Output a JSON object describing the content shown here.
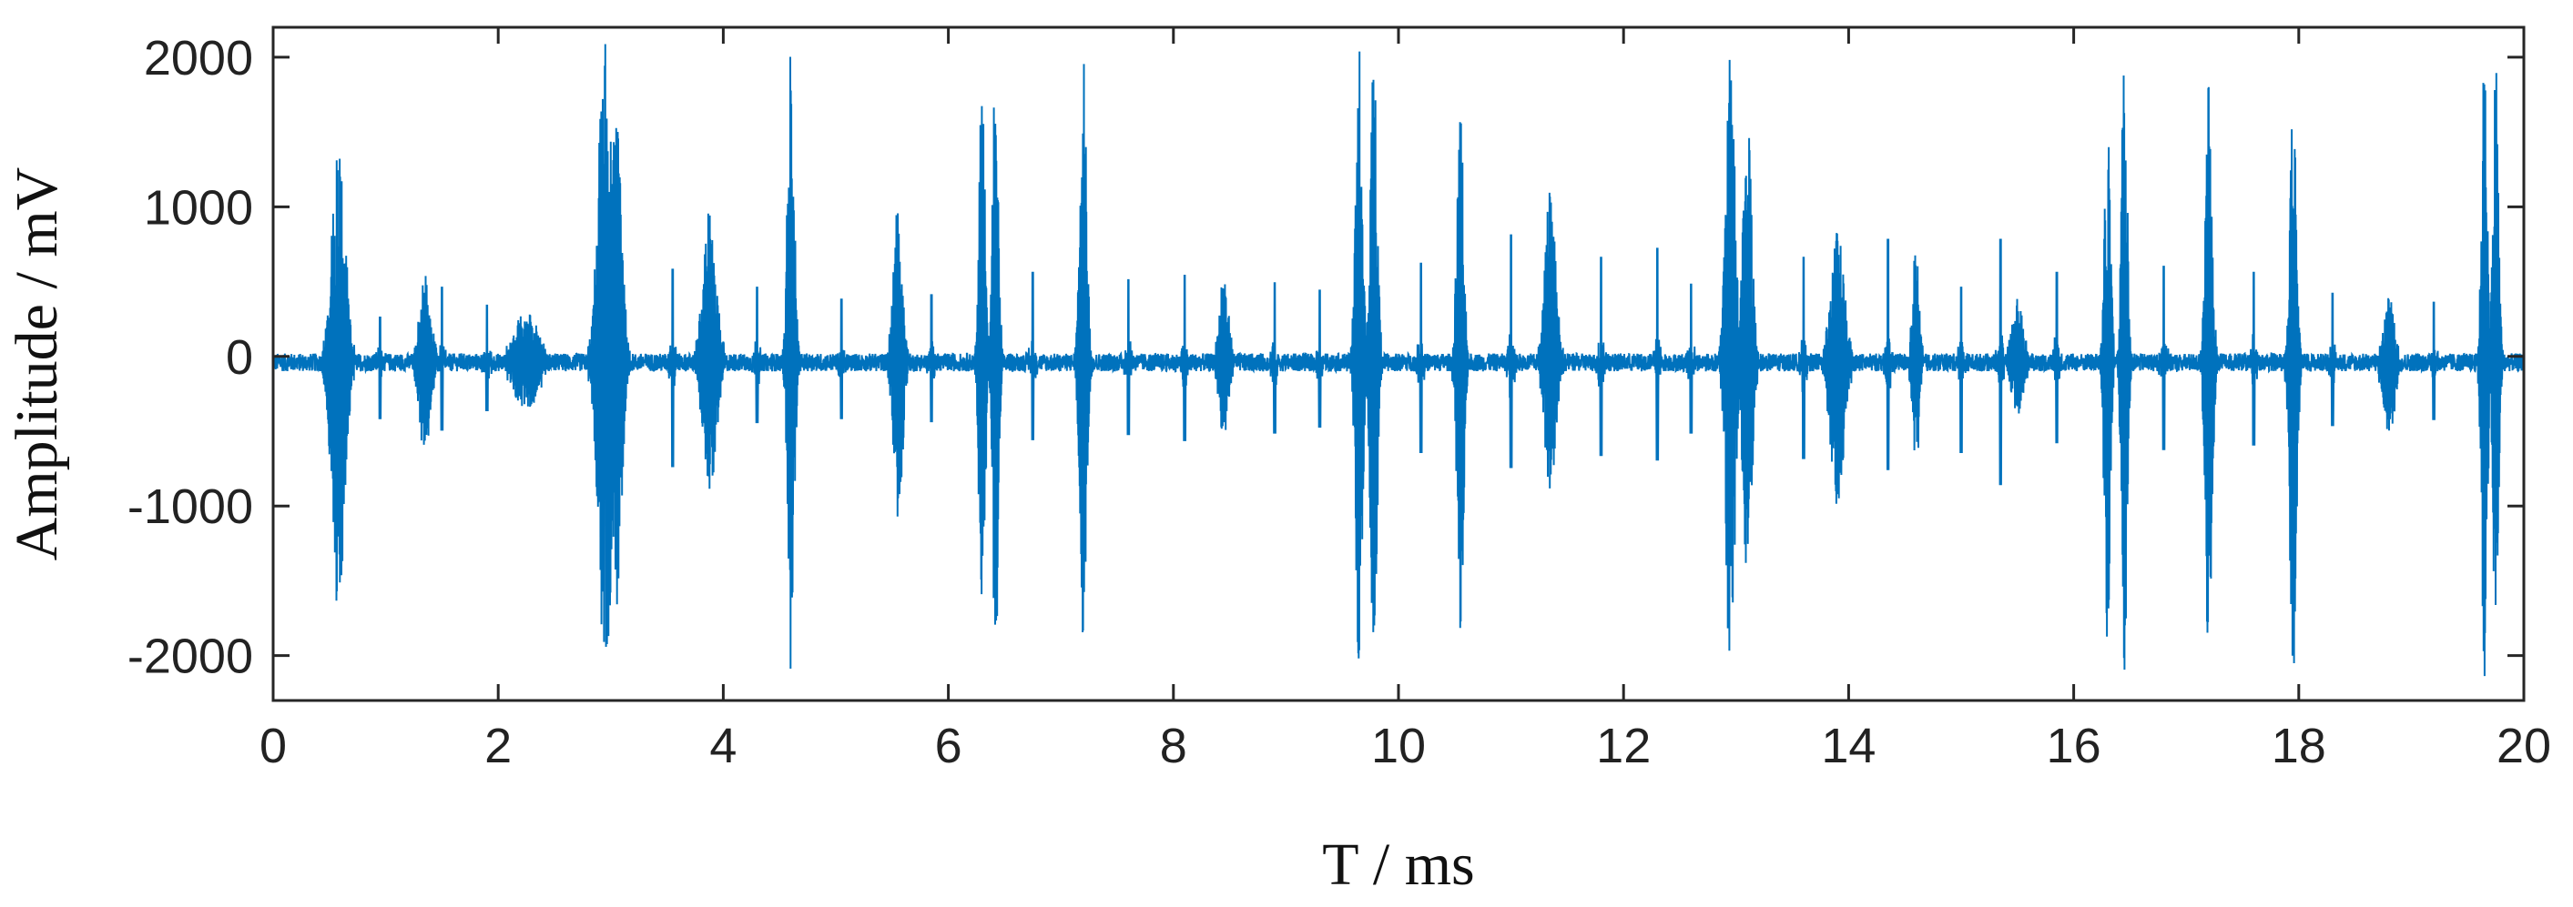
{
  "chart_data": {
    "type": "line",
    "title": "",
    "xlabel": "T / ms",
    "ylabel": "Amplitude / mV",
    "xlim": [
      0,
      20
    ],
    "ylim": [
      -2300,
      2200
    ],
    "x_ticks": [
      0,
      2,
      4,
      6,
      8,
      10,
      12,
      14,
      16,
      18,
      20
    ],
    "y_ticks": [
      -2000,
      -1000,
      0,
      1000,
      2000
    ],
    "x_tick_labels": [
      "0",
      "2",
      "4",
      "6",
      "8",
      "10",
      "12",
      "14",
      "16",
      "18",
      "20"
    ],
    "y_tick_labels": [
      "-2000",
      "-1000",
      "0",
      "1000",
      "2000"
    ],
    "grid": false,
    "legend": "none",
    "series_color": "#0072BD",
    "baseline_offset": -40,
    "noise_amplitude": 60,
    "bursts": [
      {
        "t": 0.58,
        "pos": 1480,
        "neg": -1670,
        "width": 0.12
      },
      {
        "t": 1.35,
        "pos": 560,
        "neg": -620,
        "width": 0.1
      },
      {
        "t": 2.25,
        "pos": 330,
        "neg": -320,
        "width": 0.2
      },
      {
        "t": 2.95,
        "pos": 2200,
        "neg": -2200,
        "width": 0.12
      },
      {
        "t": 3.05,
        "pos": 1650,
        "neg": -1600,
        "width": 0.1
      },
      {
        "t": 3.88,
        "pos": 1020,
        "neg": -850,
        "width": 0.12
      },
      {
        "t": 4.6,
        "pos": 2070,
        "neg": -2080,
        "width": 0.06
      },
      {
        "t": 5.55,
        "pos": 1050,
        "neg": -1160,
        "width": 0.08
      },
      {
        "t": 6.3,
        "pos": 2100,
        "neg": -2090,
        "width": 0.05
      },
      {
        "t": 6.42,
        "pos": 2100,
        "neg": -2080,
        "width": 0.05
      },
      {
        "t": 7.2,
        "pos": 2050,
        "neg": -2060,
        "width": 0.06
      },
      {
        "t": 8.45,
        "pos": 560,
        "neg": -500,
        "width": 0.08
      },
      {
        "t": 9.65,
        "pos": 2220,
        "neg": -2210,
        "width": 0.06
      },
      {
        "t": 9.78,
        "pos": 2100,
        "neg": -2060,
        "width": 0.06
      },
      {
        "t": 10.55,
        "pos": 1700,
        "neg": -2020,
        "width": 0.06
      },
      {
        "t": 11.35,
        "pos": 1160,
        "neg": -900,
        "width": 0.1
      },
      {
        "t": 12.95,
        "pos": 2240,
        "neg": -2200,
        "width": 0.08
      },
      {
        "t": 13.1,
        "pos": 1650,
        "neg": -1500,
        "width": 0.08
      },
      {
        "t": 13.9,
        "pos": 900,
        "neg": -960,
        "width": 0.12
      },
      {
        "t": 14.6,
        "pos": 800,
        "neg": -700,
        "width": 0.06
      },
      {
        "t": 15.5,
        "pos": 380,
        "neg": -350,
        "width": 0.1
      },
      {
        "t": 16.3,
        "pos": 2100,
        "neg": -2290,
        "width": 0.05
      },
      {
        "t": 16.45,
        "pos": 2100,
        "neg": -2080,
        "width": 0.05
      },
      {
        "t": 17.2,
        "pos": 1830,
        "neg": -2070,
        "width": 0.06
      },
      {
        "t": 17.95,
        "pos": 1780,
        "neg": -2140,
        "width": 0.06
      },
      {
        "t": 18.8,
        "pos": 440,
        "neg": -500,
        "width": 0.1
      },
      {
        "t": 19.65,
        "pos": 2070,
        "neg": -2230,
        "width": 0.05
      },
      {
        "t": 19.75,
        "pos": 2060,
        "neg": -2060,
        "width": 0.05
      }
    ],
    "spikes": [
      {
        "t": 0.95,
        "pos": 300,
        "neg": -380
      },
      {
        "t": 1.5,
        "pos": 500,
        "neg": -450
      },
      {
        "t": 1.9,
        "pos": 380,
        "neg": -320
      },
      {
        "t": 3.55,
        "pos": 620,
        "neg": -700
      },
      {
        "t": 4.3,
        "pos": 500,
        "neg": -400
      },
      {
        "t": 5.05,
        "pos": 420,
        "neg": -380
      },
      {
        "t": 5.85,
        "pos": 450,
        "neg": -400
      },
      {
        "t": 6.75,
        "pos": 600,
        "neg": -520
      },
      {
        "t": 7.6,
        "pos": 550,
        "neg": -480
      },
      {
        "t": 8.1,
        "pos": 580,
        "neg": -520
      },
      {
        "t": 8.9,
        "pos": 530,
        "neg": -470
      },
      {
        "t": 9.3,
        "pos": 480,
        "neg": -430
      },
      {
        "t": 10.2,
        "pos": 660,
        "neg": -600
      },
      {
        "t": 11.0,
        "pos": 850,
        "neg": -700
      },
      {
        "t": 11.8,
        "pos": 700,
        "neg": -620
      },
      {
        "t": 12.3,
        "pos": 760,
        "neg": -650
      },
      {
        "t": 12.6,
        "pos": 520,
        "neg": -470
      },
      {
        "t": 13.6,
        "pos": 700,
        "neg": -640
      },
      {
        "t": 14.35,
        "pos": 820,
        "neg": -720
      },
      {
        "t": 15.0,
        "pos": 500,
        "neg": -600
      },
      {
        "t": 15.35,
        "pos": 820,
        "neg": -820
      },
      {
        "t": 15.85,
        "pos": 600,
        "neg": -540
      },
      {
        "t": 16.8,
        "pos": 640,
        "neg": -580
      },
      {
        "t": 17.6,
        "pos": 600,
        "neg": -550
      },
      {
        "t": 18.3,
        "pos": 460,
        "neg": -420
      },
      {
        "t": 19.2,
        "pos": 400,
        "neg": -380
      }
    ]
  }
}
